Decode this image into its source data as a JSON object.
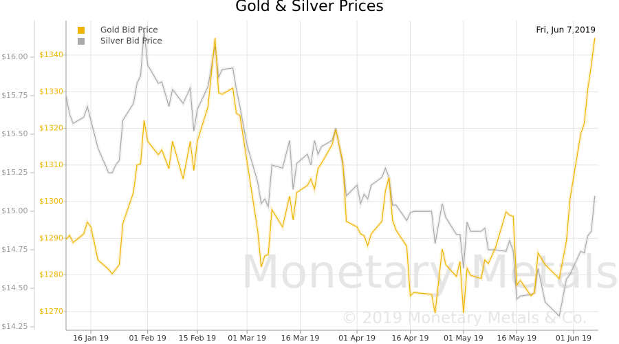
{
  "chart_data": {
    "type": "line",
    "title": "Gold & Silver Prices",
    "date_label": "Fri, Jun 7,2019",
    "watermark": "Monetary Metals",
    "copyright": "© 2019 Monetary Metals & Co.",
    "x": [
      "2019-01-09",
      "2019-01-10",
      "2019-01-11",
      "2019-01-14",
      "2019-01-15",
      "2019-01-16",
      "2019-01-18",
      "2019-01-21",
      "2019-01-22",
      "2019-01-23",
      "2019-01-24",
      "2019-01-25",
      "2019-01-28",
      "2019-01-29",
      "2019-01-30",
      "2019-01-31",
      "2019-02-01",
      "2019-02-04",
      "2019-02-05",
      "2019-02-07",
      "2019-02-08",
      "2019-02-11",
      "2019-02-13",
      "2019-02-14",
      "2019-02-15",
      "2019-02-18",
      "2019-02-20",
      "2019-02-21",
      "2019-02-22",
      "2019-02-25",
      "2019-02-26",
      "2019-02-27",
      "2019-03-01",
      "2019-03-04",
      "2019-03-05",
      "2019-03-06",
      "2019-03-07",
      "2019-03-08",
      "2019-03-11",
      "2019-03-13",
      "2019-03-14",
      "2019-03-15",
      "2019-03-18",
      "2019-03-19",
      "2019-03-20",
      "2019-03-21",
      "2019-03-22",
      "2019-03-25",
      "2019-03-26",
      "2019-03-28",
      "2019-03-29",
      "2019-04-01",
      "2019-04-02",
      "2019-04-03",
      "2019-04-04",
      "2019-04-05",
      "2019-04-08",
      "2019-04-09",
      "2019-04-10",
      "2019-04-11",
      "2019-04-12",
      "2019-04-15",
      "2019-04-16",
      "2019-04-17",
      "2019-04-22",
      "2019-04-23",
      "2019-04-25",
      "2019-04-26",
      "2019-04-29",
      "2019-04-30",
      "2019-05-01",
      "2019-05-02",
      "2019-05-03",
      "2019-05-06",
      "2019-05-07",
      "2019-05-08",
      "2019-05-10",
      "2019-05-13",
      "2019-05-14",
      "2019-05-15",
      "2019-05-16",
      "2019-05-17",
      "2019-05-20",
      "2019-05-21",
      "2019-05-22",
      "2019-05-24",
      "2019-05-28",
      "2019-05-30",
      "2019-05-31",
      "2019-06-03",
      "2019-06-04",
      "2019-06-05",
      "2019-06-06",
      "2019-06-07"
    ],
    "xlim": [
      "2019-01-09",
      "2019-06-08"
    ],
    "xticks": [
      {
        "value": "2019-01-16",
        "label": "16 Jan 19"
      },
      {
        "value": "2019-02-01",
        "label": "01 Feb 19"
      },
      {
        "value": "2019-02-15",
        "label": "15 Feb 19"
      },
      {
        "value": "2019-03-01",
        "label": "01 Mar 19"
      },
      {
        "value": "2019-03-16",
        "label": "16 Mar 19"
      },
      {
        "value": "2019-04-01",
        "label": "01 Apr 19"
      },
      {
        "value": "2019-04-16",
        "label": "16 Apr 19"
      },
      {
        "value": "2019-05-01",
        "label": "01 May 19"
      },
      {
        "value": "2019-05-16",
        "label": "16 May 19"
      },
      {
        "value": "2019-06-01",
        "label": "01 Jun 19"
      }
    ],
    "ylim": [
      14.228,
      16.237
    ],
    "yticks": [
      {
        "value": 14.25,
        "label": "$14.25"
      },
      {
        "value": 14.5,
        "label": "$14.50"
      },
      {
        "value": 14.75,
        "label": "$14.75"
      },
      {
        "value": 15,
        "label": "$15.00"
      },
      {
        "value": 15.25,
        "label": "$15.25"
      },
      {
        "value": 15.5,
        "label": "$15.50"
      },
      {
        "value": 15.75,
        "label": "$15.75"
      },
      {
        "value": 16,
        "label": "$16.00"
      }
    ],
    "y2lim": [
      1264.9,
      1349.4
    ],
    "y2ticks": [
      {
        "value": 1270,
        "label": "$1270"
      },
      {
        "value": 1280,
        "label": "$1280"
      },
      {
        "value": 1290,
        "label": "$1290"
      },
      {
        "value": 1300,
        "label": "$1300"
      },
      {
        "value": 1310,
        "label": "$1310"
      },
      {
        "value": 1320,
        "label": "$1320"
      },
      {
        "value": 1330,
        "label": "$1330"
      },
      {
        "value": 1340,
        "label": "$1340"
      }
    ],
    "grid": true,
    "series": [
      {
        "name": "Gold Bid Price",
        "color": "#f0b400",
        "axis": "y2",
        "values": [
          1289.7,
          1290.8,
          1288.8,
          1291.2,
          1294.4,
          1293.1,
          1284.1,
          1281.5,
          1280.3,
          1281.5,
          1282.8,
          1294.0,
          1302.5,
          1310.0,
          1310.3,
          1322.2,
          1316.5,
          1312.8,
          1314.1,
          1309.0,
          1316.5,
          1306.2,
          1316.5,
          1308.5,
          1316.5,
          1325.9,
          1344.7,
          1329.7,
          1329.3,
          1331.0,
          1324.1,
          1323.5,
          1310.9,
          1292.2,
          1282.2,
          1285.2,
          1285.6,
          1297.8,
          1293.1,
          1301.5,
          1295.0,
          1302.5,
          1304.4,
          1306.2,
          1303.4,
          1309.0,
          1310.5,
          1315.6,
          1319.7,
          1310.9,
          1294.6,
          1293.1,
          1291.2,
          1290.7,
          1288.0,
          1291.2,
          1294.6,
          1303.0,
          1306.6,
          1295.0,
          1292.2,
          1287.8,
          1274.3,
          1275.2,
          1274.7,
          1269.6,
          1287.1,
          1282.8,
          1279.6,
          1283.7,
          1269.6,
          1281.8,
          1279.9,
          1279.0,
          1284.1,
          1283.1,
          1287.4,
          1297.2,
          1296.3,
          1296.0,
          1277.2,
          1278.5,
          1274.3,
          1275.2,
          1286.0,
          1282.8,
          1279.0,
          1289.3,
          1300.6,
          1318.4,
          1321.2,
          1330.6,
          1337.2,
          1344.7
        ]
      },
      {
        "name": "Silver Bid Price",
        "color": "#aaaaaa",
        "values": [
          15.75,
          15.63,
          15.57,
          15.61,
          15.68,
          15.59,
          15.41,
          15.25,
          15.25,
          15.3,
          15.33,
          15.59,
          15.7,
          15.83,
          15.88,
          16.17,
          15.95,
          15.83,
          15.84,
          15.68,
          15.79,
          15.7,
          15.8,
          15.52,
          15.66,
          15.81,
          16.07,
          15.87,
          15.92,
          15.93,
          15.79,
          15.68,
          15.43,
          15.19,
          15.05,
          15.08,
          15.03,
          15.3,
          15.28,
          15.46,
          15.14,
          15.31,
          15.37,
          15.3,
          15.46,
          15.37,
          15.42,
          15.46,
          15.54,
          15.3,
          15.1,
          15.17,
          15.05,
          15.11,
          15.08,
          15.17,
          15.22,
          15.28,
          15.22,
          15.04,
          15.04,
          14.94,
          14.99,
          15.0,
          15.0,
          14.79,
          15.05,
          14.96,
          14.85,
          14.85,
          14.63,
          14.93,
          14.87,
          14.87,
          14.89,
          14.75,
          14.75,
          14.74,
          14.81,
          14.74,
          14.43,
          14.45,
          14.46,
          14.47,
          14.63,
          14.41,
          14.32,
          14.56,
          14.59,
          14.74,
          14.73,
          14.84,
          14.87,
          15.1
        ]
      }
    ]
  }
}
